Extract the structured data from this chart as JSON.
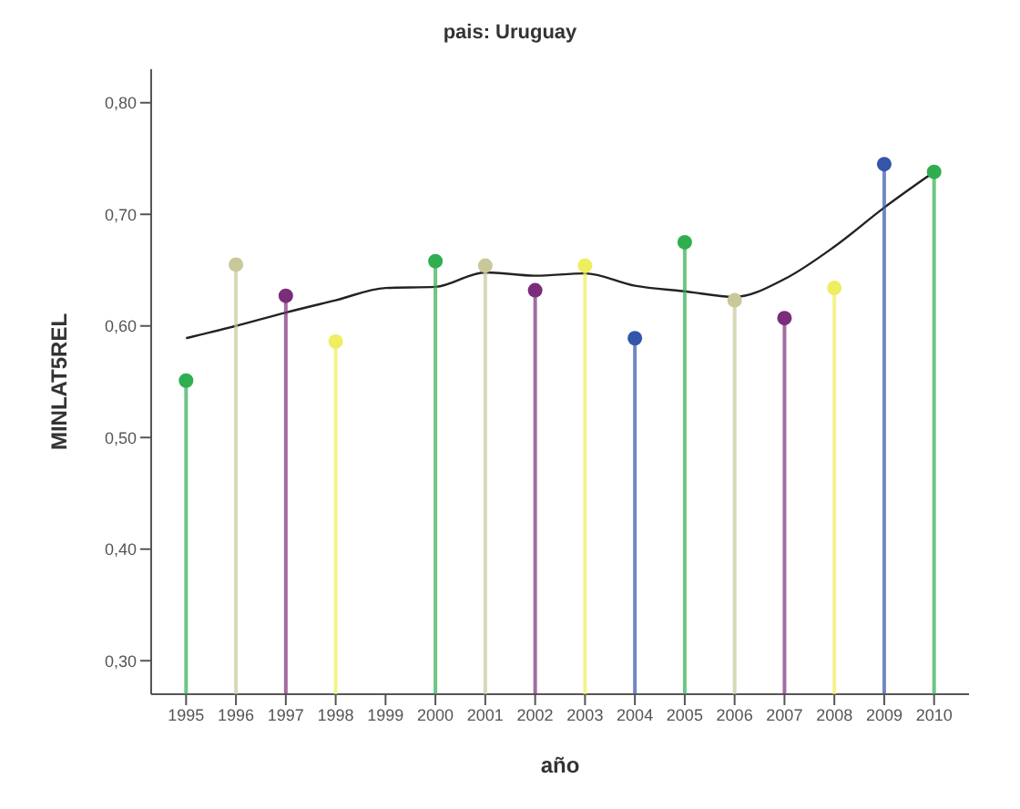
{
  "chart_data": {
    "type": "lollipop",
    "title": "pais: Uruguay",
    "xlabel": "año",
    "ylabel": "MINLAT5REL",
    "categories": [
      "1995",
      "1996",
      "1997",
      "1998",
      "1999",
      "2000",
      "2001",
      "2002",
      "2003",
      "2004",
      "2005",
      "2006",
      "2007",
      "2008",
      "2009",
      "2010"
    ],
    "series": [
      {
        "marker": "circle",
        "values": [
          0.551,
          0.655,
          0.627,
          0.586,
          null,
          0.658,
          0.654,
          0.632,
          0.654,
          0.589,
          0.675,
          0.623,
          0.607,
          0.634,
          0.745,
          0.738
        ],
        "colors": [
          "#2fae4f",
          "#c8c89a",
          "#7b2d7b",
          "#eeee60",
          null,
          "#2fae4f",
          "#c8c89a",
          "#7b2d7b",
          "#eeee60",
          "#3355aa",
          "#2fae4f",
          "#c8c89a",
          "#7b2d7b",
          "#eeee60",
          "#3355aa",
          "#2fae4f"
        ]
      },
      {
        "type": "line",
        "color": "#222222",
        "values": [
          0.589,
          0.6,
          0.612,
          0.623,
          0.634,
          0.635,
          0.648,
          0.645,
          0.647,
          0.636,
          0.631,
          0.626,
          0.642,
          0.671,
          0.706,
          0.738
        ]
      }
    ],
    "ylim": [
      0.27,
      0.83
    ],
    "yticks": [
      {
        "value": 0.3,
        "label": "0,30"
      },
      {
        "value": 0.4,
        "label": "0,40"
      },
      {
        "value": 0.5,
        "label": "0,50"
      },
      {
        "value": 0.6,
        "label": "0,60"
      },
      {
        "value": 0.7,
        "label": "0,70"
      },
      {
        "value": 0.8,
        "label": "0,80"
      }
    ],
    "legend": false
  }
}
